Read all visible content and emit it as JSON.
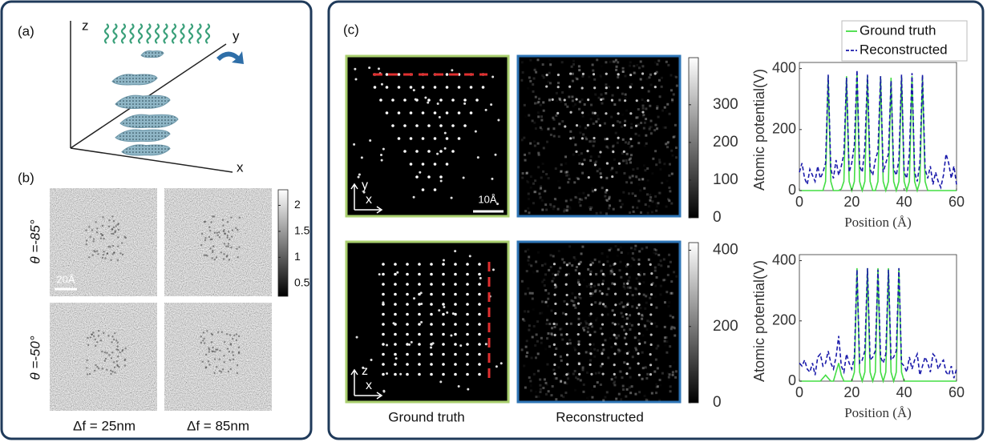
{
  "panel_a": {
    "label": "(a)",
    "axis_labels": {
      "z": "z",
      "y": "y",
      "x": "x"
    }
  },
  "panel_b": {
    "label": "(b)",
    "row_labels": [
      "θ =-85°",
      "θ =-50°"
    ],
    "column_labels": [
      "Δf = 25nm",
      "Δf = 85nm"
    ],
    "scale_bar": "20Å",
    "colorbar": {
      "lim": [
        0.25,
        2.3
      ],
      "ticks": [
        2,
        1.5,
        1,
        0.5
      ]
    }
  },
  "panel_c": {
    "label": "(c)",
    "column_labels": [
      "Ground truth",
      "Reconstructed"
    ],
    "scale_bar": "10Å",
    "image_axes": [
      [
        "y",
        "x"
      ],
      [
        "z",
        "x"
      ]
    ],
    "colorbars": [
      {
        "lim": [
          0,
          425
        ],
        "ticks": [
          0,
          100,
          200,
          300
        ]
      },
      {
        "lim": [
          0,
          420
        ],
        "ticks": [
          0,
          200,
          400
        ]
      }
    ]
  },
  "chart_data": [
    {
      "type": "line",
      "xlabel": "Position (Å)",
      "ylabel": "Atomic potential(V)",
      "x": [
        0,
        1,
        2,
        3,
        4,
        5,
        6,
        7,
        8,
        9,
        10,
        11,
        12,
        13,
        14,
        15,
        16,
        17,
        18,
        19,
        20,
        21,
        22,
        23,
        24,
        25,
        26,
        27,
        28,
        29,
        30,
        31,
        32,
        33,
        34,
        35,
        36,
        37,
        38,
        39,
        40,
        41,
        42,
        43,
        44,
        45,
        46,
        47,
        48,
        49,
        50,
        51,
        52,
        53,
        54,
        55,
        56,
        57,
        58,
        59,
        60
      ],
      "xlim": [
        0,
        60
      ],
      "xticks": [
        0,
        20,
        40,
        60
      ],
      "ylim": [
        0,
        420
      ],
      "yticks": [
        0,
        200,
        400
      ],
      "series": [
        {
          "name": "Ground truth",
          "color": "#44dd44",
          "linestyle": "solid",
          "values": [
            0,
            0,
            0,
            0,
            0,
            0,
            0,
            0,
            0,
            0,
            30,
            375,
            30,
            0,
            0,
            0,
            5,
            30,
            375,
            30,
            0,
            30,
            385,
            30,
            0,
            30,
            375,
            30,
            0,
            0,
            30,
            375,
            30,
            0,
            30,
            370,
            30,
            0,
            30,
            375,
            30,
            0,
            30,
            375,
            30,
            0,
            30,
            375,
            30,
            0,
            0,
            0,
            0,
            0,
            0,
            0,
            0,
            0,
            0,
            0,
            0
          ]
        },
        {
          "name": "Reconstructed",
          "color": "#1a1aaa",
          "linestyle": "dashed",
          "values": [
            60,
            90,
            40,
            20,
            70,
            50,
            30,
            80,
            40,
            60,
            90,
            380,
            70,
            40,
            100,
            50,
            80,
            120,
            370,
            60,
            90,
            150,
            395,
            80,
            60,
            140,
            380,
            70,
            50,
            100,
            130,
            375,
            60,
            90,
            120,
            360,
            70,
            50,
            100,
            380,
            60,
            40,
            120,
            385,
            60,
            30,
            90,
            380,
            70,
            40,
            80,
            20,
            60,
            30,
            10,
            50,
            120,
            90,
            40,
            80,
            20
          ]
        }
      ]
    },
    {
      "type": "line",
      "xlabel": "Position (Å)",
      "ylabel": "Atomic potential(V)",
      "x": [
        0,
        1,
        2,
        3,
        4,
        5,
        6,
        7,
        8,
        9,
        10,
        11,
        12,
        13,
        14,
        15,
        16,
        17,
        18,
        19,
        20,
        21,
        22,
        23,
        24,
        25,
        26,
        27,
        28,
        29,
        30,
        31,
        32,
        33,
        34,
        35,
        36,
        37,
        38,
        39,
        40,
        41,
        42,
        43,
        44,
        45,
        46,
        47,
        48,
        49,
        50,
        51,
        52,
        53,
        54,
        55,
        56,
        57,
        58,
        59,
        60
      ],
      "xlim": [
        0,
        60
      ],
      "xticks": [
        0,
        20,
        40,
        60
      ],
      "ylim": [
        0,
        420
      ],
      "yticks": [
        0,
        200,
        400
      ],
      "series": [
        {
          "color": "#44dd44",
          "linestyle": "solid",
          "values": [
            0,
            0,
            0,
            0,
            0,
            0,
            0,
            0,
            0,
            10,
            20,
            10,
            0,
            0,
            30,
            60,
            20,
            0,
            0,
            0,
            0,
            30,
            375,
            30,
            0,
            30,
            375,
            30,
            0,
            30,
            375,
            30,
            0,
            30,
            375,
            30,
            0,
            30,
            375,
            30,
            0,
            0,
            0,
            0,
            0,
            0,
            0,
            0,
            0,
            0,
            0,
            0,
            0,
            0,
            0,
            0,
            0,
            0,
            0,
            0,
            0
          ]
        },
        {
          "color": "#1a1aaa",
          "linestyle": "dashed",
          "values": [
            60,
            50,
            70,
            40,
            30,
            60,
            20,
            80,
            90,
            50,
            60,
            100,
            60,
            40,
            80,
            150,
            50,
            30,
            90,
            60,
            40,
            80,
            370,
            60,
            70,
            100,
            375,
            70,
            80,
            100,
            370,
            80,
            60,
            90,
            370,
            70,
            80,
            100,
            375,
            60,
            50,
            30,
            80,
            40,
            70,
            90,
            20,
            50,
            80,
            60,
            30,
            90,
            80,
            40,
            60,
            70,
            30,
            20,
            50,
            10,
            40
          ]
        }
      ]
    }
  ]
}
